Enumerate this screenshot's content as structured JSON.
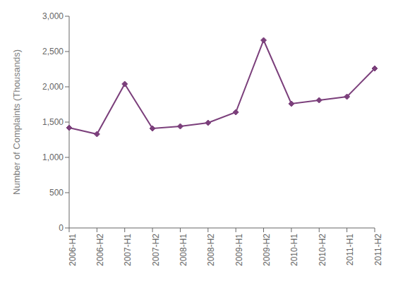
{
  "chart_data": {
    "type": "line",
    "categories": [
      "2006-H1",
      "2006-H2",
      "2007-H1",
      "2007-H2",
      "2008-H1",
      "2008-H2",
      "2009-H1",
      "2009-H2",
      "2010-H1",
      "2010-H2",
      "2011-H1",
      "2011-H2"
    ],
    "values": [
      1420,
      1330,
      2040,
      1410,
      1440,
      1490,
      1640,
      2660,
      1760,
      1810,
      1860,
      2260
    ],
    "color": "#7B3F7B",
    "marker": "diamond",
    "ylabel": "Number of Complaints (Thousands)",
    "ylim": [
      0,
      3000
    ],
    "yticks": [
      0,
      500,
      {
        "value": 1000,
        "label": "1,000"
      },
      {
        "value": 1500,
        "label": "1,500"
      },
      {
        "value": 2000,
        "label": "2,000"
      },
      {
        "value": 2500,
        "label": "2,500"
      },
      {
        "value": 3000,
        "label": "3,000"
      }
    ],
    "grid": false
  }
}
